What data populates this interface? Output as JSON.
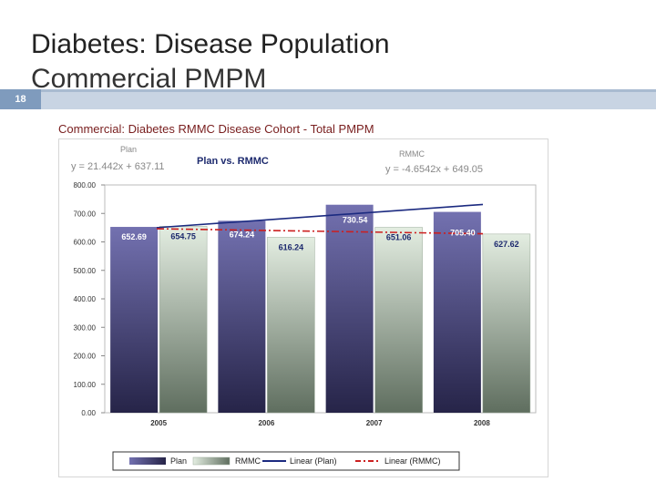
{
  "slide": {
    "title_line1": "Diabetes: Disease Population",
    "title_line2": "Commercial PMPM",
    "number": "18"
  },
  "colors": {
    "plan_bar": "#5a5896",
    "rmmc_bar": "#c8d7c5",
    "linear_plan": "#1b2a80",
    "linear_rmmc": "#cc1f1f",
    "heading": "#7a2020",
    "accent_bar": "#7f9bbd"
  },
  "chart_data": {
    "type": "bar",
    "title": "Commercial: Diabetes RMMC Disease Cohort  -  Total PMPM",
    "subtitle": "Plan vs. RMMC",
    "categories": [
      "2005",
      "2006",
      "2007",
      "2008"
    ],
    "series": [
      {
        "name": "Plan",
        "values": [
          652.69,
          674.24,
          730.54,
          705.4
        ],
        "labels": [
          "652.69",
          "674.24",
          "730.54",
          "705.40"
        ]
      },
      {
        "name": "RMMC",
        "values": [
          654.75,
          616.24,
          651.06,
          627.62
        ],
        "labels": [
          "654.75",
          "616.24",
          "651.06",
          "627.62"
        ]
      }
    ],
    "trendlines": [
      {
        "name": "Linear (Plan)",
        "label": "Plan",
        "equation": "y = 21.442x + 637.11",
        "slope": 21.442,
        "intercept": 637.11
      },
      {
        "name": "Linear (RMMC)",
        "label": "RMMC",
        "equation": "y = -4.6542x + 649.05",
        "slope": -4.6542,
        "intercept": 649.05
      }
    ],
    "yticks": [
      "0.00",
      "100.00",
      "200.00",
      "300.00",
      "400.00",
      "500.00",
      "600.00",
      "700.00",
      "800.00"
    ],
    "ylim": [
      0,
      800
    ],
    "xlabel": "",
    "ylabel": "",
    "legend": [
      "Plan",
      "RMMC",
      "Linear (Plan)",
      "Linear (RMMC)"
    ],
    "legend_position": "bottom"
  }
}
